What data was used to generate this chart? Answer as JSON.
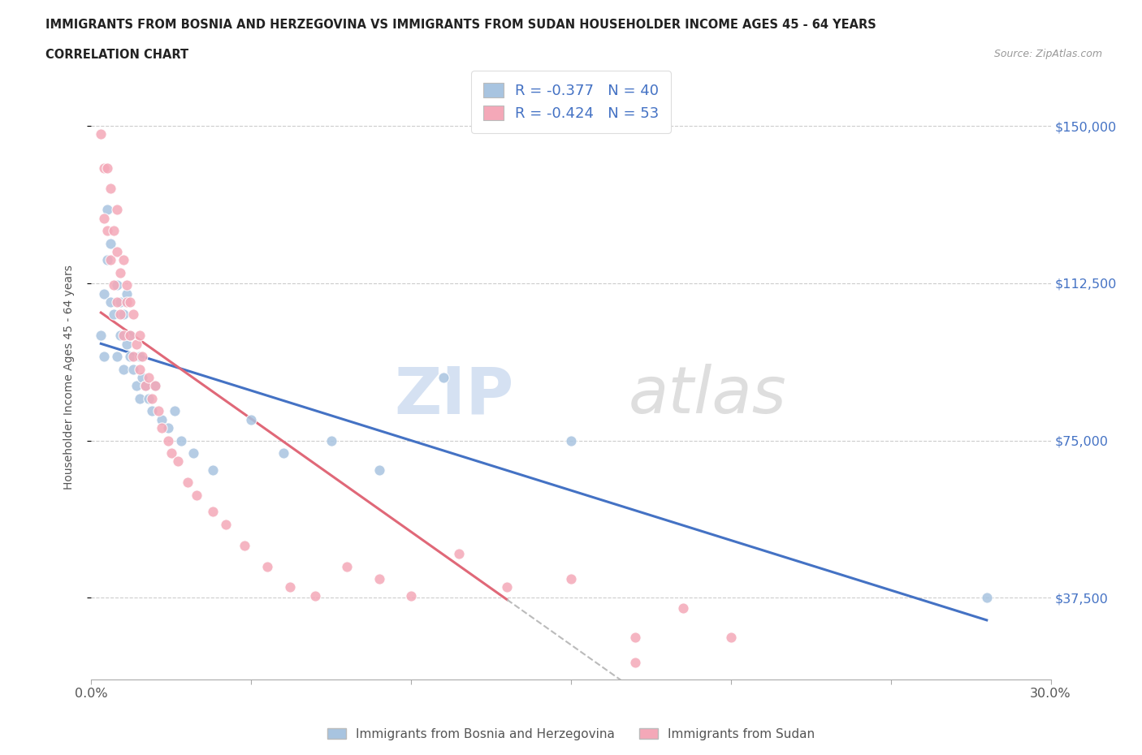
{
  "title_line1": "IMMIGRANTS FROM BOSNIA AND HERZEGOVINA VS IMMIGRANTS FROM SUDAN HOUSEHOLDER INCOME AGES 45 - 64 YEARS",
  "title_line2": "CORRELATION CHART",
  "source_text": "Source: ZipAtlas.com",
  "ylabel": "Householder Income Ages 45 - 64 years",
  "xlim": [
    0.0,
    0.3
  ],
  "ylim": [
    18000,
    162000
  ],
  "yticks": [
    37500,
    75000,
    112500,
    150000
  ],
  "ytick_labels": [
    "$37,500",
    "$75,000",
    "$112,500",
    "$150,000"
  ],
  "xticks": [
    0.0,
    0.05,
    0.1,
    0.15,
    0.2,
    0.25,
    0.3
  ],
  "xtick_labels": [
    "0.0%",
    "",
    "",
    "",
    "",
    "",
    "30.0%"
  ],
  "bosnia_color": "#a8c4e0",
  "sudan_color": "#f4a8b8",
  "bosnia_line_color": "#4472c4",
  "sudan_line_color": "#e06878",
  "bosnia_R": -0.377,
  "bosnia_N": 40,
  "sudan_R": -0.424,
  "sudan_N": 53,
  "legend_text_color": "#4472c4",
  "bosnia_scatter_x": [
    0.003,
    0.004,
    0.004,
    0.005,
    0.005,
    0.006,
    0.006,
    0.007,
    0.008,
    0.008,
    0.009,
    0.009,
    0.01,
    0.01,
    0.011,
    0.011,
    0.012,
    0.012,
    0.013,
    0.014,
    0.015,
    0.015,
    0.016,
    0.017,
    0.018,
    0.019,
    0.02,
    0.022,
    0.024,
    0.026,
    0.028,
    0.032,
    0.038,
    0.05,
    0.06,
    0.075,
    0.09,
    0.11,
    0.15,
    0.28
  ],
  "bosnia_scatter_y": [
    100000,
    110000,
    95000,
    130000,
    118000,
    108000,
    122000,
    105000,
    112000,
    95000,
    100000,
    108000,
    92000,
    105000,
    98000,
    110000,
    95000,
    100000,
    92000,
    88000,
    95000,
    85000,
    90000,
    88000,
    85000,
    82000,
    88000,
    80000,
    78000,
    82000,
    75000,
    72000,
    68000,
    80000,
    72000,
    75000,
    68000,
    90000,
    75000,
    37500
  ],
  "sudan_scatter_x": [
    0.003,
    0.004,
    0.004,
    0.005,
    0.005,
    0.006,
    0.006,
    0.007,
    0.007,
    0.008,
    0.008,
    0.008,
    0.009,
    0.009,
    0.01,
    0.01,
    0.011,
    0.011,
    0.012,
    0.012,
    0.013,
    0.013,
    0.014,
    0.015,
    0.015,
    0.016,
    0.017,
    0.018,
    0.019,
    0.02,
    0.021,
    0.022,
    0.024,
    0.025,
    0.027,
    0.03,
    0.033,
    0.038,
    0.042,
    0.048,
    0.055,
    0.062,
    0.07,
    0.08,
    0.09,
    0.1,
    0.115,
    0.13,
    0.15,
    0.17,
    0.185,
    0.2,
    0.17
  ],
  "sudan_scatter_y": [
    148000,
    140000,
    128000,
    140000,
    125000,
    135000,
    118000,
    125000,
    112000,
    120000,
    108000,
    130000,
    115000,
    105000,
    118000,
    100000,
    108000,
    112000,
    100000,
    108000,
    95000,
    105000,
    98000,
    100000,
    92000,
    95000,
    88000,
    90000,
    85000,
    88000,
    82000,
    78000,
    75000,
    72000,
    70000,
    65000,
    62000,
    58000,
    55000,
    50000,
    45000,
    40000,
    38000,
    45000,
    42000,
    38000,
    48000,
    40000,
    42000,
    28000,
    35000,
    28000,
    22000
  ]
}
